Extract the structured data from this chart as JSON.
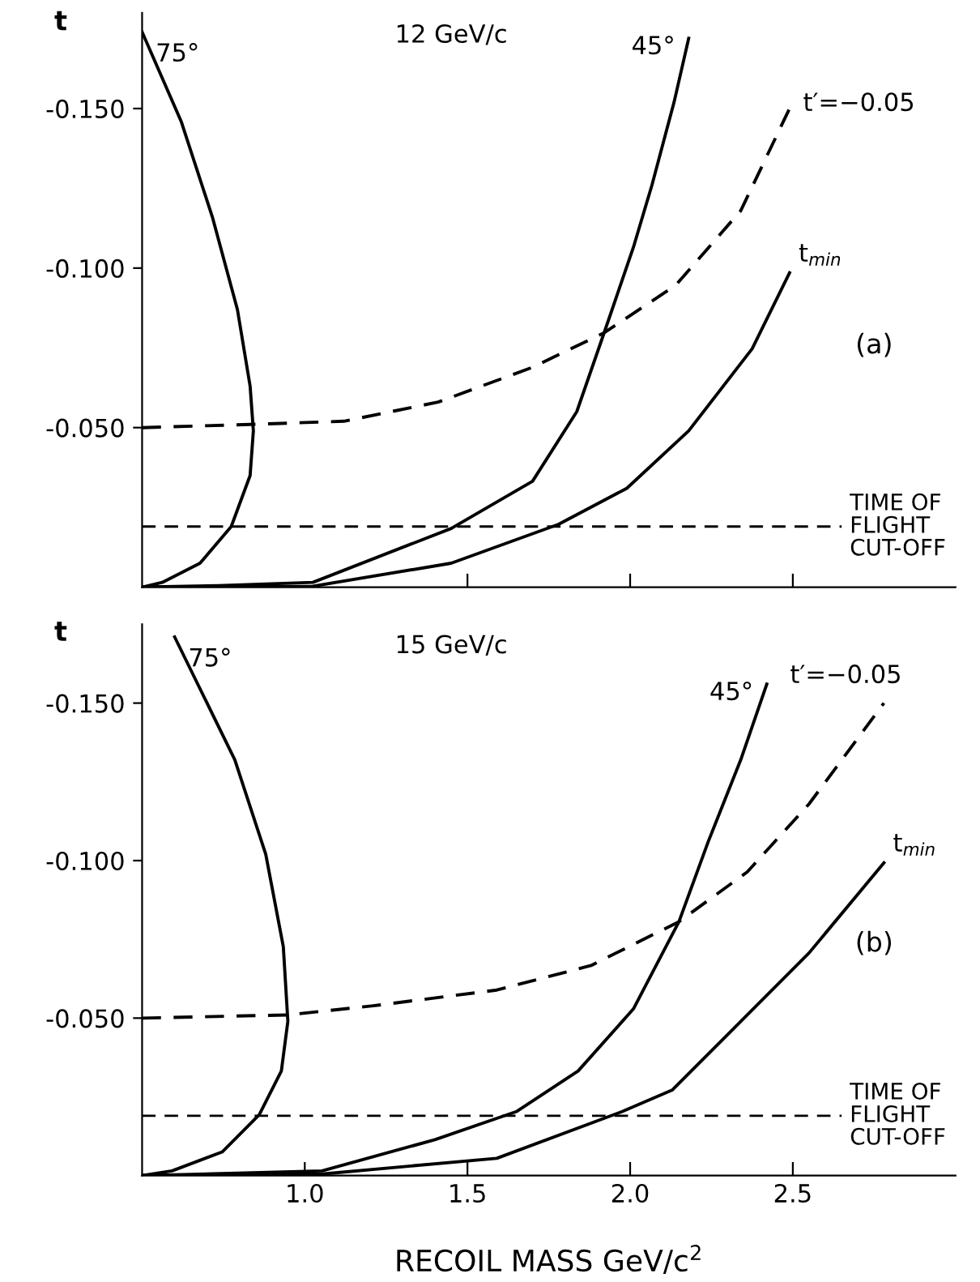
{
  "chart_data": [
    {
      "type": "line",
      "ylabel": "t",
      "annotations": [
        "12 GeV/c",
        "(a)"
      ],
      "xlim": [
        0.5,
        3.0
      ],
      "ylim": [
        0,
        -0.18
      ],
      "xticks": [
        {
          "value": 1.5,
          "label": null
        },
        {
          "value": 2.0,
          "label": null
        },
        {
          "value": 2.5,
          "label": null
        }
      ],
      "yticks": [
        {
          "value": -0.05,
          "label": "-0.050"
        },
        {
          "value": -0.1,
          "label": "-0.100"
        },
        {
          "value": -0.15,
          "label": "-0.150"
        }
      ],
      "tick_labels": "y",
      "grid": false,
      "legend": false,
      "marker": "none",
      "series": [
        {
          "name": "75°",
          "color": "#000000",
          "line_style": "solid",
          "x": [
            0.5,
            0.62,
            0.716,
            0.793,
            0.832,
            0.842,
            0.832,
            0.774,
            0.678,
            0.562,
            0.5
          ],
          "values": [
            -0.174,
            -0.146,
            -0.116,
            -0.087,
            -0.063,
            -0.049,
            -0.035,
            -0.019,
            -0.0075,
            -0.0015,
            0
          ]
        },
        {
          "name": "45°",
          "color": "#000000",
          "line_style": "solid",
          "x": [
            0.5,
            0.735,
            1.025,
            1.45,
            1.7,
            1.836,
            1.92,
            2.01,
            2.067,
            2.135,
            2.18
          ],
          "values": [
            0,
            -0.0005,
            -0.0015,
            -0.0184,
            -0.0332,
            -0.055,
            -0.0797,
            -0.1065,
            -0.126,
            -0.152,
            -0.172
          ]
        },
        {
          "name": "t$_{min}$",
          "color": "#000000",
          "line_style": "solid",
          "x": [
            0.5,
            1.025,
            1.45,
            1.78,
            1.99,
            2.18,
            2.375,
            2.49
          ],
          "values": [
            0,
            -0.0003,
            -0.0075,
            -0.0197,
            -0.031,
            -0.049,
            -0.0747,
            -0.0985
          ]
        },
        {
          "name": "t′=−0.05",
          "color": "#000000",
          "line_style": "dashed",
          "x": [
            0.5,
            0.832,
            1.12,
            1.41,
            1.7,
            1.92,
            2.14,
            2.34,
            2.49
          ],
          "values": [
            -0.05,
            -0.051,
            -0.052,
            -0.058,
            -0.0689,
            -0.0797,
            -0.0946,
            -0.118,
            -0.15
          ]
        }
      ],
      "ref_lines": [
        {
          "axis": "y",
          "value": -0.019,
          "label": "TIME OF\nFLIGHT\nCUT-OFF",
          "color": "#000000",
          "line_style": "dashed"
        }
      ]
    },
    {
      "type": "line",
      "ylabel": "t",
      "xlabel": "RECOIL MASS GeV/c$^{2}$",
      "annotations": [
        "15 GeV/c",
        "(b)"
      ],
      "xlim": [
        0.5,
        3.0
      ],
      "ylim": [
        0,
        -0.175
      ],
      "xticks": [
        {
          "value": 1.0,
          "label": "1.0"
        },
        {
          "value": 1.5,
          "label": "1.5"
        },
        {
          "value": 2.0,
          "label": "2.0"
        },
        {
          "value": 2.5,
          "label": "2.5"
        }
      ],
      "yticks": [
        {
          "value": -0.05,
          "label": "-0.050"
        },
        {
          "value": -0.1,
          "label": "-0.100"
        },
        {
          "value": -0.15,
          "label": "-0.150"
        }
      ],
      "grid": false,
      "legend": false,
      "marker": "none",
      "series": [
        {
          "name": "75°",
          "color": "#000000",
          "line_style": "solid",
          "x": [
            0.6,
            0.785,
            0.88,
            0.934,
            0.948,
            0.928,
            0.86,
            0.746,
            0.592,
            0.5
          ],
          "values": [
            -0.171,
            -0.132,
            -0.102,
            -0.0727,
            -0.049,
            -0.0332,
            -0.0193,
            -0.0075,
            -0.0015,
            0
          ]
        },
        {
          "name": "45°",
          "color": "#000000",
          "line_style": "solid",
          "x": [
            0.5,
            1.053,
            1.4,
            1.65,
            1.84,
            2.01,
            2.15,
            2.24,
            2.34,
            2.42
          ],
          "values": [
            0,
            -0.0015,
            -0.0114,
            -0.0203,
            -0.0332,
            -0.0529,
            -0.0806,
            -0.106,
            -0.132,
            -0.156
          ]
        },
        {
          "name": "t$_{min}$",
          "color": "#000000",
          "line_style": "solid",
          "x": [
            0.5,
            1.053,
            1.59,
            1.975,
            2.13,
            2.36,
            2.55,
            2.78
          ],
          "values": [
            0,
            -0.0005,
            -0.0055,
            -0.0203,
            -0.0272,
            -0.051,
            -0.0707,
            -0.0993
          ]
        },
        {
          "name": "t′=−0.05",
          "color": "#000000",
          "line_style": "dashed",
          "x": [
            0.5,
            0.948,
            1.21,
            1.59,
            1.88,
            2.15,
            2.36,
            2.55,
            2.78
          ],
          "values": [
            -0.05,
            -0.051,
            -0.0539,
            -0.0589,
            -0.0667,
            -0.0806,
            -0.0964,
            -0.118,
            -0.15
          ]
        }
      ],
      "ref_lines": [
        {
          "axis": "y",
          "value": -0.019,
          "label": "TIME OF\nFLIGHT\nCUT-OFF",
          "color": "#000000",
          "line_style": "dashed"
        }
      ]
    }
  ]
}
